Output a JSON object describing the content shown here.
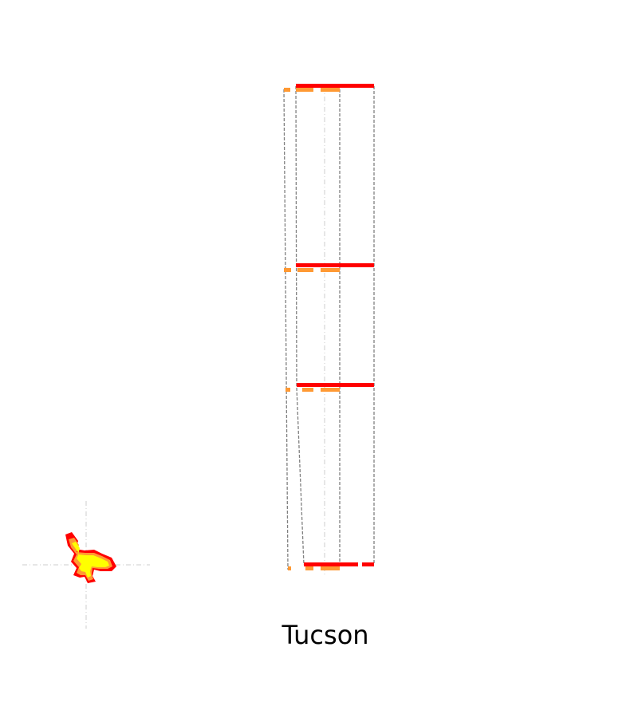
{
  "city": {
    "name": "Tucson"
  },
  "colors": {
    "band_red": "#ff0000",
    "band_orange": "#ff9933",
    "guide_gray": "#808080",
    "axis_light_gray": "#cccccc",
    "glyph_yellow": "#ffff00"
  },
  "icons": {
    "aircraft": "aircraft-icon"
  }
}
